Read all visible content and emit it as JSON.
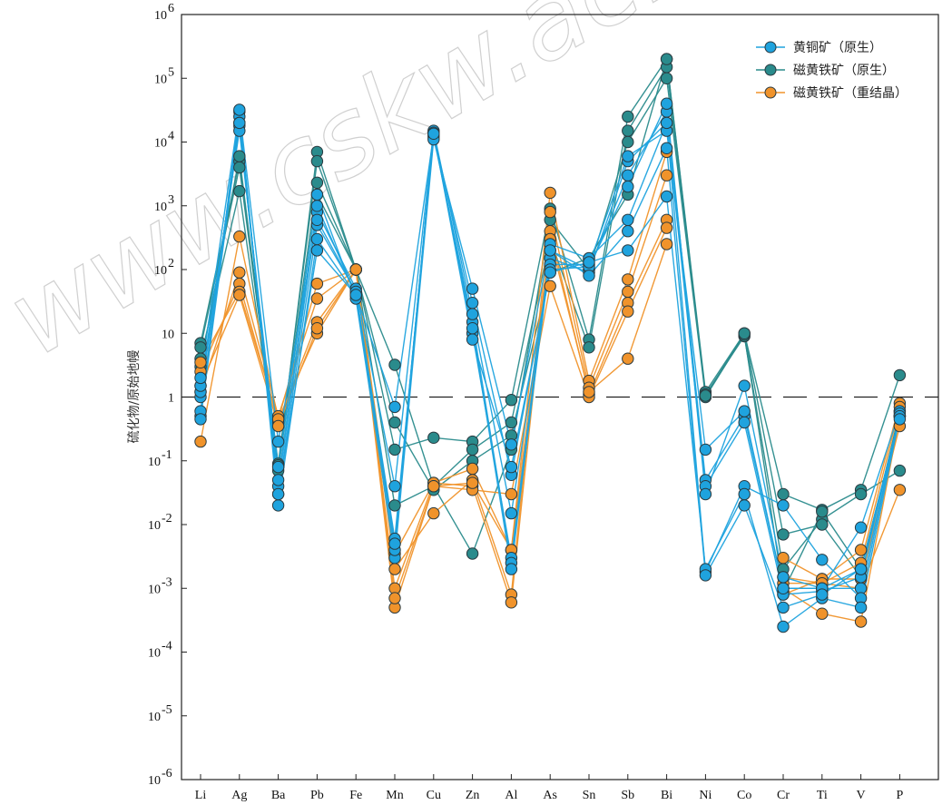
{
  "chart_data": {
    "type": "line",
    "title": "",
    "xlabel": "",
    "ylabel": "硫化物/原始地幔",
    "y_scale": "log",
    "ylim": [
      1e-06,
      1000000.0
    ],
    "y_ticks": [
      {
        "base": "10",
        "exp": "6"
      },
      {
        "base": "10",
        "exp": "5"
      },
      {
        "base": "10",
        "exp": "4"
      },
      {
        "base": "10",
        "exp": "3"
      },
      {
        "base": "10",
        "exp": "2"
      },
      {
        "base": "10",
        "exp": ""
      },
      {
        "base": "1",
        "exp": ""
      },
      {
        "base": "10",
        "exp": "-1"
      },
      {
        "base": "10",
        "exp": "-2"
      },
      {
        "base": "10",
        "exp": "-3"
      },
      {
        "base": "10",
        "exp": "-4"
      },
      {
        "base": "10",
        "exp": "-5"
      },
      {
        "base": "10",
        "exp": "-6"
      }
    ],
    "categories": [
      "Li",
      "Ag",
      "Ba",
      "Pb",
      "Fe",
      "Mn",
      "Cu",
      "Zn",
      "Al",
      "As",
      "Sn",
      "Sb",
      "Bi",
      "Ni",
      "Co",
      "Cr",
      "Ti",
      "V",
      "P"
    ],
    "reference_line": 1,
    "legend_position": "top-right",
    "series": [
      {
        "name": "黄铜矿（原生）",
        "color": "#1fa3de",
        "samples": [
          [
            0.5,
            30000,
            0.02,
            300,
            40,
            0.005,
            14000,
            10,
            0.003,
            200,
            100,
            3000,
            30000,
            0.05,
            0.5,
            0.001,
            0.001,
            0.001,
            0.5
          ],
          [
            0.6,
            25000,
            0.03,
            500,
            45,
            0.006,
            12000,
            15,
            0.0025,
            150,
            90,
            5000,
            20000,
            0.04,
            0.4,
            0.0008,
            0.0009,
            0.0015,
            0.5
          ],
          [
            1.0,
            20000,
            0.04,
            800,
            50,
            0.04,
            15000,
            20,
            0.015,
            120,
            120,
            6000,
            15000,
            0.15,
            0.6,
            0.001,
            0.001,
            0.002,
            0.5
          ],
          [
            1.2,
            18000,
            0.05,
            1000,
            40,
            0.7,
            13000,
            30,
            0.06,
            100,
            110,
            2000,
            40000,
            0.03,
            1.5,
            0.0015,
            0.001,
            0.009,
            0.6
          ],
          [
            1.5,
            15000,
            0.08,
            1500,
            35,
            0.003,
            11000,
            50,
            0.18,
            250,
            150,
            600,
            20000,
            0.0018,
            0.04,
            0.02,
            0.0028,
            0.0007,
            0.55
          ],
          [
            2.0,
            32000,
            0.2,
            600,
            45,
            0.004,
            14000,
            8,
            0.08,
            90,
            130,
            200,
            1400,
            0.002,
            0.03,
            0.00025,
            0.0007,
            0.0005,
            0.5
          ],
          [
            0.45,
            20000,
            0.03,
            200,
            40,
            0.005,
            13500,
            12,
            0.002,
            200,
            80,
            400,
            8000,
            0.0016,
            0.02,
            0.0005,
            0.0008,
            0.002,
            0.45
          ]
        ]
      },
      {
        "name": "磁黄铁矿（原生）",
        "color": "#2a8b8c",
        "samples": [
          [
            7,
            5000,
            0.08,
            7000,
            100,
            0.15,
            0.23,
            0.2,
            0.9,
            900,
            8,
            25000,
            200000,
            1.2,
            10,
            0.03,
            0.017,
            0.035,
            2.2
          ],
          [
            6,
            4000,
            0.09,
            5000,
            100,
            0.02,
            0.04,
            0.15,
            0.4,
            300,
            6,
            15000,
            150000,
            1.1,
            9,
            0.002,
            0.012,
            0.03,
            0.07
          ],
          [
            4,
            1700,
            0.085,
            2300,
            100,
            3.2,
            0.04,
            0.0035,
            0.15,
            600,
            100,
            10000,
            100000,
            1.0,
            9.5,
            0.0009,
            0.016,
            0.002,
            0.5
          ],
          [
            3,
            6000,
            0.07,
            1500,
            100,
            0.4,
            0.035,
            0.1,
            0.25,
            90,
            150,
            1500,
            200000,
            1.05,
            10,
            0.007,
            0.01,
            0.0015,
            0.6
          ]
        ]
      },
      {
        "name": "磁黄铁矿（重结晶）",
        "color": "#f0932b",
        "samples": [
          [
            0.2,
            330,
            0.45,
            60,
            100,
            0.0035,
            0.045,
            0.075,
            0.004,
            1600,
            1.8,
            70,
            7000,
            null,
            null,
            0.003,
            0.0014,
            0.004,
            0.8
          ],
          [
            1.2,
            90,
            0.5,
            35,
            100,
            0.002,
            0.015,
            0.05,
            0.0008,
            800,
            1.4,
            45,
            3000,
            null,
            null,
            0.0015,
            0.0012,
            0.0025,
            0.7
          ],
          [
            2.5,
            60,
            0.4,
            15,
            100,
            0.001,
            0.045,
            0.04,
            0.0006,
            400,
            1.1,
            30,
            600,
            null,
            null,
            0.001,
            0.0004,
            0.0003,
            0.5
          ],
          [
            3.5,
            45,
            0.45,
            10,
            100,
            0.0005,
            0.04,
            0.035,
            0.03,
            55,
            1.0,
            22,
            450,
            null,
            null,
            0.0008,
            0.0014,
            0.0014,
            0.35
          ],
          [
            1.5,
            40,
            0.35,
            12,
            100,
            0.0007,
            0.04,
            0.045,
            0.004,
            300,
            1.2,
            4,
            250,
            null,
            null,
            0.0012,
            0.0012,
            0.001,
            0.035
          ]
        ]
      }
    ]
  },
  "watermark": "www.cskw.ac.cn"
}
